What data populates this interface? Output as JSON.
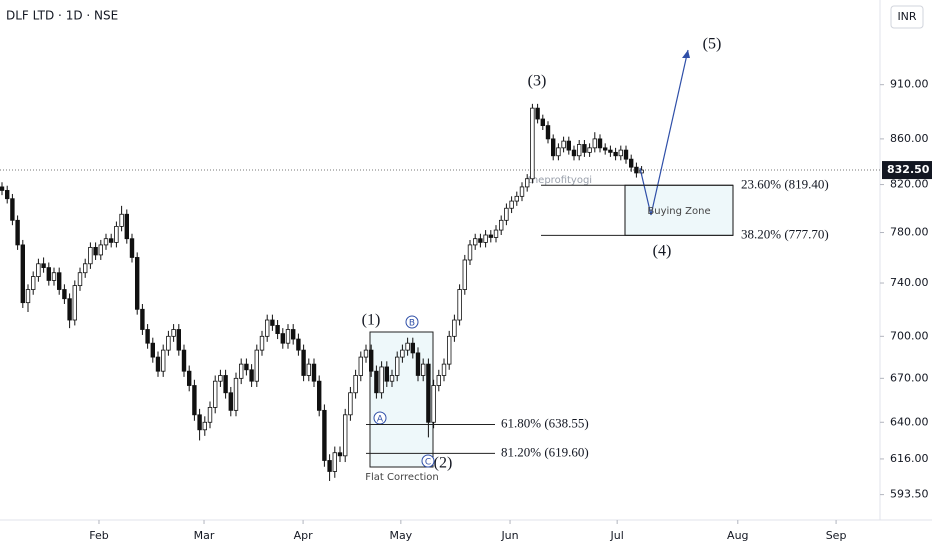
{
  "chart_data": {
    "type": "candlestick",
    "title": "DLF LTD · 1D · NSE",
    "currency": "INR",
    "watermark": "theprofityogi",
    "log_scale": true,
    "ylim": [
      578,
      994
    ],
    "yticks": [
      {
        "value": 910,
        "label": "910.00"
      },
      {
        "value": 860,
        "label": "860.00"
      },
      {
        "value": 820,
        "label": "820.00"
      },
      {
        "value": 780,
        "label": "780.00"
      },
      {
        "value": 740,
        "label": "740.00"
      },
      {
        "value": 700,
        "label": "700.00"
      },
      {
        "value": 670,
        "label": "670.00"
      },
      {
        "value": 640,
        "label": "640.00"
      },
      {
        "value": 616,
        "label": "616.00"
      },
      {
        "value": 593.5,
        "label": "593.50"
      }
    ],
    "xticks": [
      {
        "value": 18.65,
        "label": "Feb"
      },
      {
        "value": 38.85,
        "label": "Mar"
      },
      {
        "value": 57.9,
        "label": "Apr"
      },
      {
        "value": 76.7,
        "label": "May"
      },
      {
        "value": 97.7,
        "label": "Jun"
      },
      {
        "value": 118.3,
        "label": "Jul"
      },
      {
        "value": 141.5,
        "label": "Aug"
      },
      {
        "value": 160.4,
        "label": "Sep"
      }
    ],
    "up_color": "#ffffff",
    "down_color": "#111111",
    "open": [
      818,
      815,
      808,
      790,
      770,
      725,
      735,
      745,
      755,
      752,
      742,
      748,
      735,
      728,
      712,
      738,
      748,
      755,
      768,
      762,
      770,
      775,
      772,
      785,
      795,
      775,
      760,
      720,
      705,
      695,
      685,
      675,
      690,
      700,
      705,
      690,
      675,
      665,
      645,
      635,
      640,
      650,
      668,
      672,
      660,
      648,
      670,
      680,
      676,
      668,
      690,
      700,
      712,
      708,
      702,
      695,
      705,
      698,
      690,
      672,
      680,
      668,
      648,
      615,
      608,
      620,
      618,
      645,
      660,
      672,
      685,
      690,
      675,
      660,
      678,
      668,
      672,
      685,
      690,
      695,
      688,
      672,
      680,
      640,
      665,
      672,
      680,
      700,
      712,
      735,
      758,
      770,
      775,
      772,
      778,
      776,
      782,
      790,
      800,
      806,
      810,
      818,
      825,
      888,
      878,
      872,
      860,
      845,
      852,
      858,
      850,
      845,
      855,
      848,
      852,
      860,
      852,
      850,
      848,
      845,
      850,
      842,
      835,
      830
    ],
    "high": [
      822,
      819,
      812,
      794,
      774,
      739,
      749,
      759,
      760,
      756,
      752,
      752,
      739,
      732,
      742,
      752,
      759,
      772,
      772,
      774,
      779,
      779,
      789,
      802,
      799,
      779,
      764,
      724,
      709,
      699,
      689,
      694,
      704,
      709,
      709,
      694,
      679,
      669,
      649,
      644,
      654,
      672,
      676,
      676,
      664,
      674,
      684,
      684,
      680,
      694,
      704,
      716,
      716,
      712,
      706,
      709,
      709,
      702,
      694,
      684,
      684,
      672,
      652,
      619,
      624,
      624,
      649,
      664,
      676,
      689,
      694,
      694,
      679,
      682,
      682,
      676,
      689,
      694,
      699,
      699,
      692,
      684,
      684,
      669,
      676,
      684,
      704,
      716,
      739,
      762,
      774,
      779,
      779,
      782,
      782,
      786,
      794,
      804,
      810,
      814,
      822,
      829,
      892,
      892,
      882,
      876,
      864,
      856,
      862,
      862,
      854,
      859,
      859,
      856,
      866,
      864,
      856,
      854,
      852,
      854,
      854,
      846,
      839,
      836
    ],
    "low": [
      811,
      804,
      786,
      766,
      721,
      718,
      731,
      741,
      748,
      738,
      738,
      731,
      724,
      706,
      708,
      734,
      744,
      751,
      758,
      758,
      766,
      768,
      768,
      781,
      771,
      756,
      716,
      701,
      691,
      681,
      671,
      671,
      686,
      696,
      686,
      671,
      661,
      641,
      628,
      631,
      636,
      646,
      664,
      656,
      644,
      644,
      666,
      672,
      664,
      664,
      686,
      696,
      704,
      698,
      691,
      691,
      694,
      686,
      668,
      668,
      664,
      644,
      611,
      602,
      604,
      614,
      614,
      641,
      656,
      668,
      681,
      671,
      656,
      656,
      664,
      664,
      668,
      681,
      686,
      684,
      668,
      668,
      630,
      636,
      661,
      668,
      676,
      696,
      708,
      731,
      754,
      766,
      768,
      768,
      772,
      772,
      778,
      786,
      796,
      802,
      806,
      814,
      821,
      874,
      868,
      856,
      841,
      841,
      848,
      846,
      841,
      841,
      844,
      844,
      848,
      848,
      846,
      844,
      841,
      841,
      838,
      831,
      826,
      828
    ],
    "close": [
      815,
      808,
      790,
      770,
      725,
      735,
      745,
      755,
      752,
      742,
      748,
      735,
      728,
      712,
      738,
      748,
      755,
      768,
      762,
      770,
      775,
      772,
      785,
      795,
      775,
      760,
      720,
      705,
      695,
      685,
      675,
      690,
      700,
      705,
      690,
      675,
      665,
      645,
      635,
      640,
      650,
      668,
      672,
      660,
      648,
      670,
      680,
      676,
      668,
      690,
      700,
      712,
      708,
      702,
      695,
      705,
      698,
      690,
      672,
      680,
      668,
      648,
      615,
      608,
      620,
      618,
      645,
      660,
      672,
      685,
      690,
      675,
      660,
      678,
      668,
      672,
      685,
      690,
      695,
      688,
      672,
      680,
      640,
      665,
      672,
      680,
      700,
      712,
      735,
      758,
      770,
      775,
      772,
      778,
      776,
      782,
      790,
      800,
      806,
      810,
      818,
      825,
      888,
      878,
      872,
      860,
      845,
      852,
      858,
      850,
      845,
      855,
      848,
      852,
      860,
      852,
      850,
      848,
      845,
      850,
      842,
      835,
      830,
      832.5
    ],
    "last_price": {
      "value": 832.5,
      "label": "832.50"
    },
    "fib_levels": [
      {
        "value": 819.4,
        "label": "23.60% (819.40)"
      },
      {
        "value": 777.7,
        "label": "38.20% (777.70)"
      },
      {
        "value": 638.55,
        "label": "61.80% (638.55)"
      },
      {
        "value": 619.6,
        "label": "81.20% (619.60)"
      }
    ],
    "annotations": {
      "wave1": "(1)",
      "wave2": "(2)",
      "wave3": "(3)",
      "wave4": "(4)",
      "wave5": "(5)",
      "a": "A",
      "b": "B",
      "c": "C",
      "buying_zone": "Buying Zone",
      "flat_correction": "Flat Correction"
    }
  }
}
